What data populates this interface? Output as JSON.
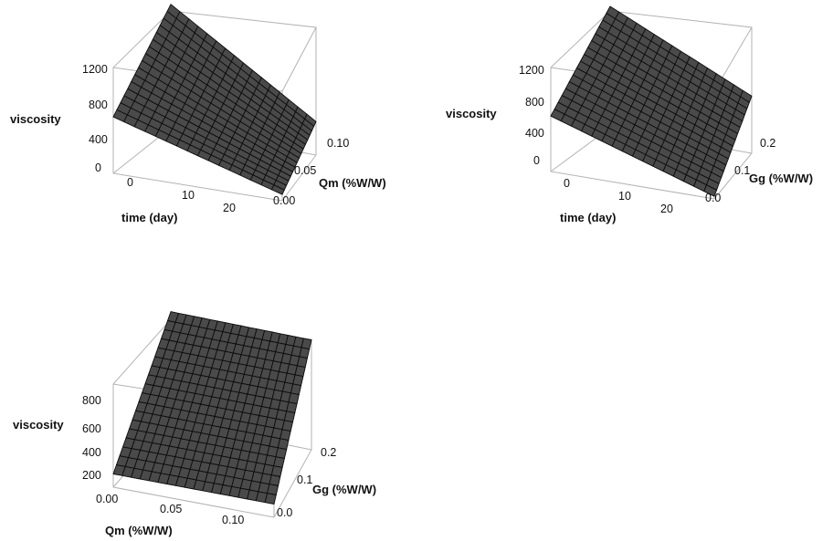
{
  "chart_data": [
    {
      "type": "surface",
      "title": "",
      "xlabel": "time (day)",
      "ylabel": "Qm (%W/W)",
      "zlabel": "viscosity",
      "x_ticks": [
        "0",
        "10",
        "20"
      ],
      "y_ticks": [
        "0.00",
        "0.05",
        "0.10"
      ],
      "z_ticks": [
        "0",
        "400",
        "800",
        "1200"
      ],
      "xlim": [
        0,
        21
      ],
      "ylim": [
        0,
        0.1
      ],
      "zlim": [
        0,
        1450
      ],
      "corners": [
        {
          "x": 0,
          "y": 0,
          "z": 640
        },
        {
          "x": 21,
          "y": 0,
          "z": 70
        },
        {
          "x": 21,
          "y": 0.1,
          "z": 380
        },
        {
          "x": 0,
          "y": 0.1,
          "z": 1400
        }
      ],
      "grid": true
    },
    {
      "type": "surface",
      "title": "",
      "xlabel": "time (day)",
      "ylabel": "Gg (%W/W)",
      "zlabel": "viscosity",
      "x_ticks": [
        "0",
        "10",
        "20"
      ],
      "y_ticks": [
        "0.0",
        "0.1",
        "0.2"
      ],
      "z_ticks": [
        "0",
        "400",
        "800",
        "1200"
      ],
      "xlim": [
        0,
        21
      ],
      "ylim": [
        0,
        0.2
      ],
      "zlim": [
        0,
        1450
      ],
      "corners": [
        {
          "x": 0,
          "y": 0,
          "z": 640
        },
        {
          "x": 21,
          "y": 0,
          "z": 30
        },
        {
          "x": 21,
          "y": 0.2,
          "z": 660
        },
        {
          "x": 0,
          "y": 0.2,
          "z": 1400
        }
      ],
      "grid": true
    },
    {
      "type": "surface",
      "title": "",
      "xlabel": "Qm (%W/W)",
      "ylabel": "Gg (%W/W)",
      "zlabel": "viscosity",
      "x_ticks": [
        "0.00",
        "0.05",
        "0.10"
      ],
      "y_ticks": [
        "0.0",
        "0.1",
        "0.2"
      ],
      "z_ticks": [
        "200",
        "400",
        "600",
        "800"
      ],
      "xlim": [
        0,
        0.1
      ],
      "ylim": [
        0,
        0.2
      ],
      "zlim": [
        100,
        1000
      ],
      "corners": [
        {
          "x": 0,
          "y": 0,
          "z": 200
        },
        {
          "x": 0.1,
          "y": 0,
          "z": 200
        },
        {
          "x": 0.1,
          "y": 0.2,
          "z": 930
        },
        {
          "x": 0,
          "y": 0.2,
          "z": 930
        }
      ],
      "grid": true
    }
  ]
}
